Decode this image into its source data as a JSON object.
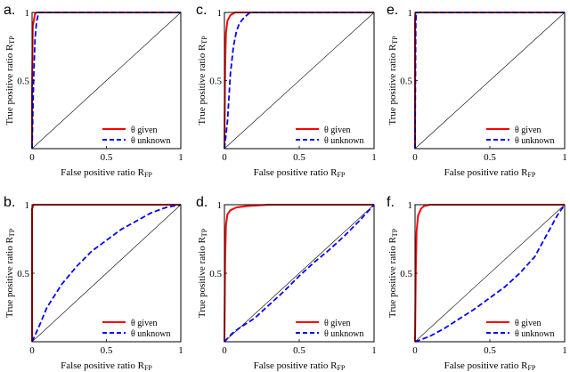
{
  "colors": {
    "given": "#ff0000",
    "unknown": "#0000ff",
    "diagonal": "#000000",
    "frame": "#000000"
  },
  "chart_data": [
    {
      "type": "line",
      "panel_label": "a.",
      "xlabel": "False positive ratio R",
      "xlabel_sub": "FP",
      "ylabel": "True positive ratio R",
      "ylabel_sub": "TP",
      "xlim": [
        0,
        1
      ],
      "ylim": [
        0,
        1
      ],
      "xticks": [
        "0",
        "0.5",
        "1"
      ],
      "yticks": [
        "0.5",
        "1"
      ],
      "legend": [
        "θ given",
        "θ unknown"
      ],
      "legend_loc": "bottom-right",
      "series": [
        {
          "name": "θ given",
          "style": "solid",
          "x": [
            0,
            0,
            0.005,
            0.02,
            0.03,
            1
          ],
          "y": [
            0,
            0.4,
            0.9,
            0.99,
            1,
            1
          ]
        },
        {
          "name": "θ unknown",
          "style": "dashed",
          "x": [
            0,
            0.01,
            0.02,
            0.03,
            0.04,
            0.05,
            1
          ],
          "y": [
            0,
            0.5,
            0.8,
            0.93,
            0.98,
            1,
            1
          ]
        }
      ]
    },
    {
      "type": "line",
      "panel_label": "c.",
      "xlabel": "False positive ratio R",
      "xlabel_sub": "FP",
      "ylabel": "True positive ratio R",
      "ylabel_sub": "TP",
      "xlim": [
        0,
        1
      ],
      "ylim": [
        0,
        1
      ],
      "xticks": [
        "0",
        "0.5",
        "1"
      ],
      "yticks": [
        "0.5",
        "1"
      ],
      "legend": [
        "θ given",
        "θ unknown"
      ],
      "legend_loc": "bottom-right",
      "series": [
        {
          "name": "θ given",
          "style": "solid",
          "x": [
            0,
            0.005,
            0.01,
            0.02,
            0.04,
            0.07,
            1
          ],
          "y": [
            0,
            0.6,
            0.85,
            0.94,
            0.98,
            1,
            1
          ]
        },
        {
          "name": "θ unknown",
          "style": "dashed",
          "x": [
            0,
            0.02,
            0.04,
            0.06,
            0.08,
            0.1,
            0.13,
            0.17,
            1
          ],
          "y": [
            0,
            0.2,
            0.55,
            0.75,
            0.86,
            0.92,
            0.96,
            1,
            1
          ]
        }
      ]
    },
    {
      "type": "line",
      "panel_label": "e.",
      "xlabel": "False positive ratio R",
      "xlabel_sub": "FP",
      "ylabel": "True positive ratio R",
      "ylabel_sub": "TP",
      "xlim": [
        0,
        1
      ],
      "ylim": [
        0,
        1
      ],
      "xticks": [
        "0",
        "0.5",
        "1"
      ],
      "yticks": [
        "0.5",
        "1"
      ],
      "legend": [
        "θ given",
        "θ unknown"
      ],
      "legend_loc": "bottom-right",
      "series": [
        {
          "name": "θ given",
          "style": "solid",
          "x": [
            0,
            0,
            0.003,
            1
          ],
          "y": [
            0,
            0.95,
            1,
            1
          ]
        },
        {
          "name": "θ unknown",
          "style": "dashed",
          "x": [
            0,
            0.005,
            0.008,
            1
          ],
          "y": [
            0,
            0.9,
            1,
            1
          ]
        }
      ]
    },
    {
      "type": "line",
      "panel_label": "b.",
      "xlabel": "False positive ratio R",
      "xlabel_sub": "FP",
      "ylabel": "True positive ratio R",
      "ylabel_sub": "TP",
      "xlim": [
        0,
        1
      ],
      "ylim": [
        0,
        1
      ],
      "xticks": [
        "0",
        "0.5",
        "1"
      ],
      "yticks": [
        "0.5",
        "1"
      ],
      "legend": [
        "θ given",
        "θ unknown"
      ],
      "legend_loc": "bottom-right",
      "series": [
        {
          "name": "θ given",
          "style": "solid",
          "x": [
            0,
            0,
            0.01,
            1
          ],
          "y": [
            0,
            0.97,
            1,
            1
          ]
        },
        {
          "name": "θ unknown",
          "style": "dashed",
          "x": [
            0,
            0.05,
            0.1,
            0.2,
            0.3,
            0.4,
            0.5,
            0.6,
            0.7,
            0.8,
            0.9,
            1
          ],
          "y": [
            0,
            0.12,
            0.25,
            0.42,
            0.55,
            0.66,
            0.74,
            0.82,
            0.88,
            0.94,
            0.98,
            1
          ]
        }
      ]
    },
    {
      "type": "line",
      "panel_label": "d.",
      "xlabel": "False positive ratio R",
      "xlabel_sub": "FP",
      "ylabel": "True positive ratio R",
      "ylabel_sub": "TP",
      "xlim": [
        0,
        1
      ],
      "ylim": [
        0,
        1
      ],
      "xticks": [
        "0",
        "0.5",
        "1"
      ],
      "yticks": [
        "0.5",
        "1"
      ],
      "legend": [
        "θ given",
        "θ unknown"
      ],
      "legend_loc": "bottom-right",
      "series": [
        {
          "name": "θ given",
          "style": "solid",
          "x": [
            0,
            0.005,
            0.01,
            0.02,
            0.04,
            0.08,
            0.15,
            0.3,
            1
          ],
          "y": [
            0,
            0.6,
            0.85,
            0.93,
            0.96,
            0.98,
            0.99,
            1,
            1
          ]
        },
        {
          "name": "θ unknown",
          "style": "dashed",
          "x": [
            0,
            0.05,
            0.1,
            0.2,
            0.3,
            0.4,
            0.5,
            0.6,
            0.7,
            0.8,
            0.9,
            1
          ],
          "y": [
            0,
            0.06,
            0.1,
            0.17,
            0.27,
            0.37,
            0.48,
            0.58,
            0.67,
            0.77,
            0.88,
            1
          ]
        }
      ]
    },
    {
      "type": "line",
      "panel_label": "f.",
      "xlabel": "False positive ratio R",
      "xlabel_sub": "FP",
      "ylabel": "True positive ratio R",
      "ylabel_sub": "TP",
      "xlim": [
        0,
        1
      ],
      "ylim": [
        0,
        1
      ],
      "xticks": [
        "0",
        "0.5",
        "1"
      ],
      "yticks": [
        "0.5",
        "1"
      ],
      "legend": [
        "θ given",
        "θ unknown"
      ],
      "legend_loc": "bottom-right",
      "series": [
        {
          "name": "θ unknown",
          "style": "dashed",
          "x": [
            0,
            0.1,
            0.2,
            0.3,
            0.4,
            0.5,
            0.6,
            0.7,
            0.8,
            0.85,
            0.9,
            0.95,
            1
          ],
          "y": [
            0,
            0.04,
            0.1,
            0.17,
            0.24,
            0.32,
            0.4,
            0.5,
            0.62,
            0.72,
            0.82,
            0.92,
            1
          ]
        },
        {
          "name": "θ given",
          "style": "solid",
          "x": [
            0,
            0.005,
            0.01,
            0.02,
            0.04,
            0.06,
            0.1,
            1
          ],
          "y": [
            0,
            0.5,
            0.8,
            0.92,
            0.97,
            0.99,
            1,
            1
          ]
        }
      ]
    }
  ]
}
